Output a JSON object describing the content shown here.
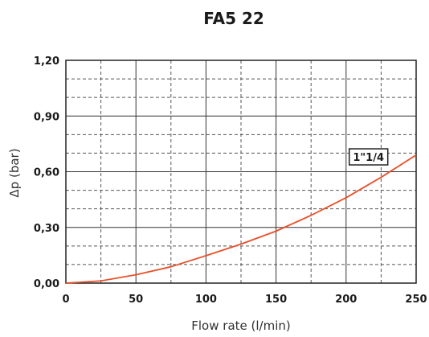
{
  "chart_data": {
    "type": "line",
    "title": "FA5 22",
    "xlabel": "Flow rate (l/min)",
    "ylabel": "Δp (bar)",
    "xlim": [
      0,
      250
    ],
    "ylim": [
      0,
      1.2
    ],
    "x_ticks": [
      0,
      50,
      100,
      150,
      200,
      250
    ],
    "x_tick_labels": [
      "0",
      "50",
      "100",
      "150",
      "200",
      "250"
    ],
    "y_ticks": [
      0,
      0.3,
      0.6,
      0.9,
      1.2
    ],
    "y_tick_labels": [
      "0,00",
      "0,30",
      "0,60",
      "0,90",
      "1,20"
    ],
    "grid": true,
    "series": [
      {
        "name": "1\"1/4",
        "color": "#e8502a",
        "x": [
          0,
          25,
          50,
          75,
          100,
          125,
          150,
          175,
          200,
          225,
          250
        ],
        "y": [
          0,
          0.012,
          0.045,
          0.088,
          0.148,
          0.21,
          0.28,
          0.365,
          0.46,
          0.57,
          0.69
        ]
      }
    ],
    "annotation": {
      "text": "1\"1/4",
      "x": 216,
      "y": 0.68
    }
  }
}
